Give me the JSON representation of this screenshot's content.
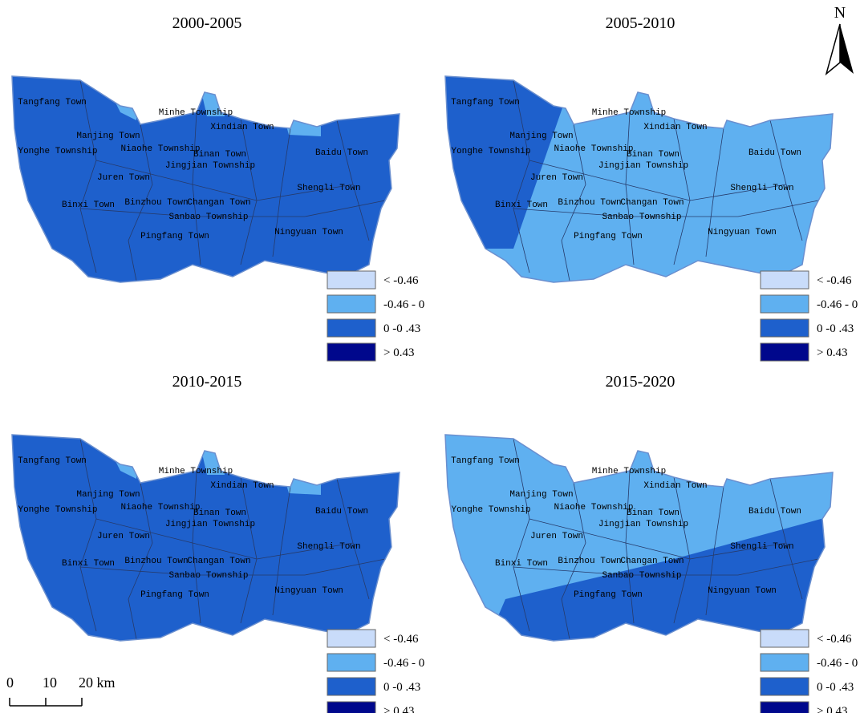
{
  "panels": [
    {
      "title": "2000-2005"
    },
    {
      "title": "2005-2010"
    },
    {
      "title": "2010-2015"
    },
    {
      "title": "2015-2020"
    }
  ],
  "towns": [
    "Tangfang Town",
    "Manjing Town",
    "Minhe Township",
    "Xindian Town",
    "Yonghe Township",
    "Niaohe Township",
    "Binan Town",
    "Jingjian Township",
    "Baidu Town",
    "Juren Town",
    "Shengli Town",
    "Binxi Town",
    "Binzhou Town",
    "Changan Town",
    "Sanbao Township",
    "Pingfang Town",
    "Ningyuan Town"
  ],
  "legend": [
    {
      "label": "< -0.46",
      "color": "#c9dcfa"
    },
    {
      "label": "-0.46 - 0",
      "color": "#5fb0f0"
    },
    {
      "label": "0 -0 .43",
      "color": "#1e60cc"
    },
    {
      "label": "> 0.43",
      "color": "#00088c"
    }
  ],
  "north": "N",
  "scale": [
    "0",
    "10",
    "20 km"
  ]
}
